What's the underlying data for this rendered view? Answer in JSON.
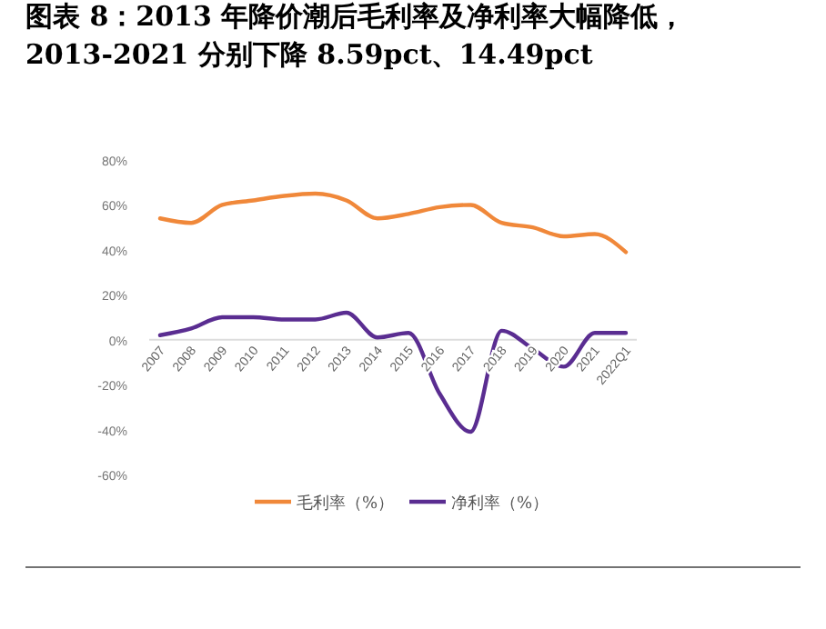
{
  "chart_data": {
    "type": "line",
    "title": "图表 8：2013 年降价潮后毛利率及净利率大幅降低，2013-2021 分别下降 8.59pct、14.49pct",
    "categories": [
      "2007",
      "2008",
      "2009",
      "2010",
      "2011",
      "2012",
      "2013",
      "2014",
      "2015",
      "2016",
      "2017",
      "2018",
      "2019",
      "2020",
      "2021",
      "2022Q1"
    ],
    "series": [
      {
        "name": "毛利率（%）",
        "color": "#f0883a",
        "values": [
          54,
          52,
          60,
          62,
          64,
          65,
          62,
          54,
          56,
          59,
          60,
          52,
          50,
          46,
          47,
          39
        ]
      },
      {
        "name": "净利率（%）",
        "color": "#5a2d91",
        "values": [
          2,
          5,
          10,
          10,
          9,
          9,
          12,
          1,
          3,
          -24,
          -41,
          4,
          -4,
          -12,
          3,
          3
        ]
      }
    ],
    "ylim": [
      -60,
      80
    ],
    "yticks": [
      {
        "value": -60,
        "label": "-60%"
      },
      {
        "value": -40,
        "label": "-40%"
      },
      {
        "value": -20,
        "label": "-20%"
      },
      {
        "value": 0,
        "label": "0%"
      },
      {
        "value": 20,
        "label": "20%"
      },
      {
        "value": 40,
        "label": "40%"
      },
      {
        "value": 60,
        "label": "60%"
      },
      {
        "value": 80,
        "label": "80%"
      }
    ],
    "legend": "bottom",
    "line_style": "solid",
    "marker": "none"
  }
}
